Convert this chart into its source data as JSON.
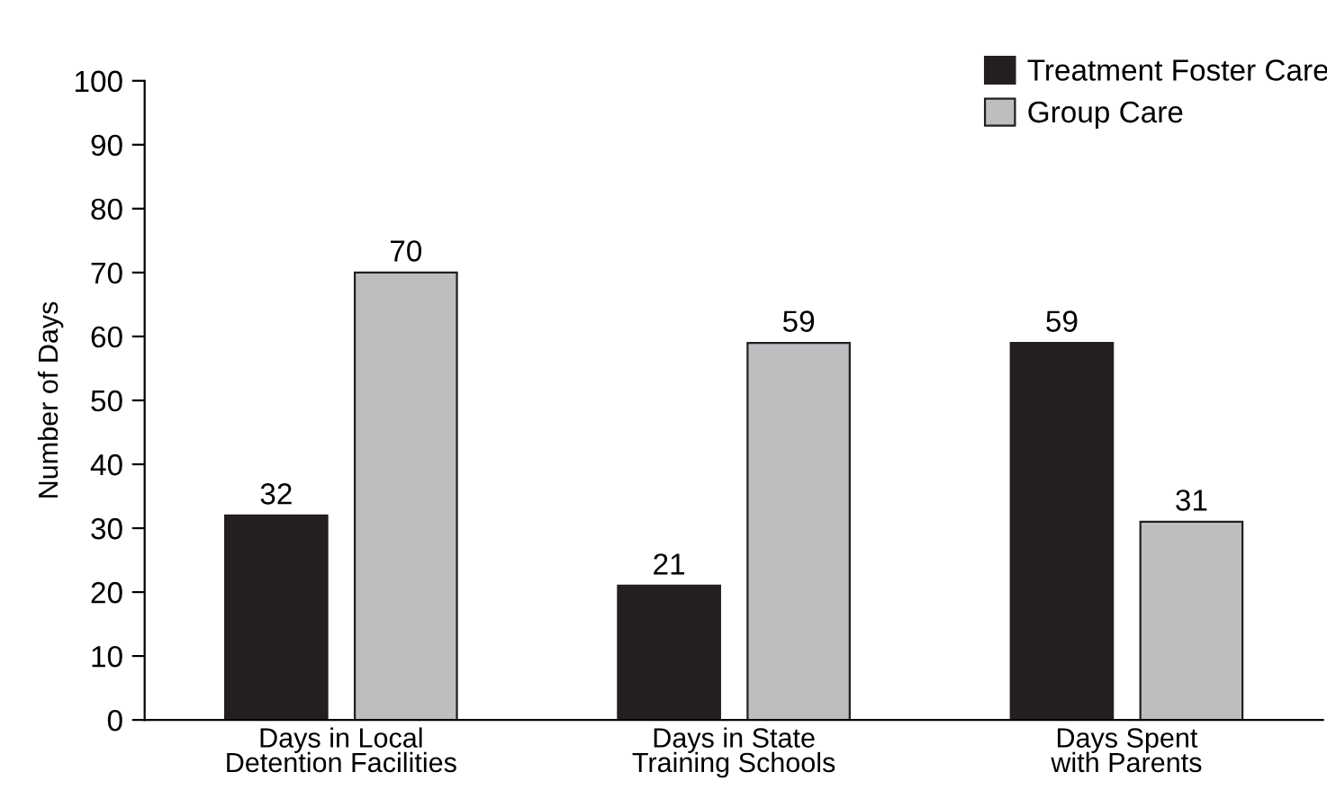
{
  "chart_data": {
    "type": "bar",
    "ylabel": "Number of Days",
    "categories": [
      "Days in Local\nDetention Facilities",
      "Days in State\nTraining Schools",
      "Days Spent\nwith Parents"
    ],
    "series": [
      {
        "name": "Treatment Foster Care",
        "color": "#231f20",
        "values": [
          32,
          21,
          59
        ]
      },
      {
        "name": "Group Care",
        "color": "#bcbec0",
        "values": [
          70,
          59,
          31
        ]
      }
    ],
    "ylim": [
      0,
      100
    ],
    "yticks": [
      0,
      10,
      20,
      30,
      40,
      50,
      60,
      70,
      80,
      90,
      100
    ],
    "data_labels": true,
    "legend": "top right",
    "grid": false
  }
}
